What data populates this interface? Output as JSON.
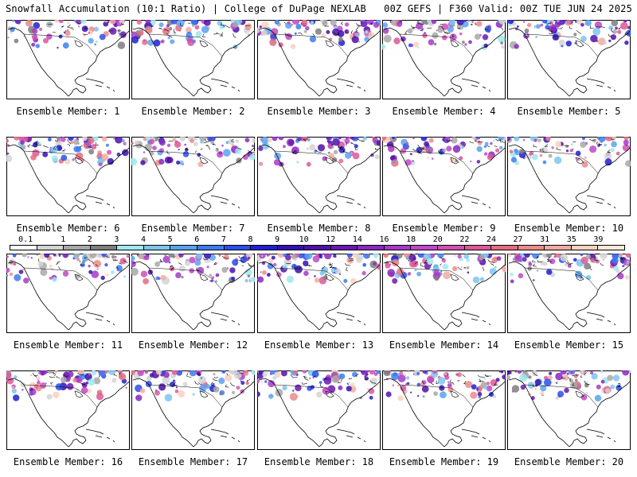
{
  "header": {
    "left": "Snowfall Accumulation (10:1 Ratio) | College of DuPage NEXLAB",
    "right": "00Z GEFS | F360 Valid: 00Z TUE JUN 24 2025"
  },
  "colorbar": {
    "labels": [
      "0.1",
      "1",
      "2",
      "3",
      "4",
      "5",
      "6",
      "7",
      "8",
      "9",
      "10",
      "12",
      "14",
      "16",
      "18",
      "20",
      "22",
      "24",
      "27",
      "31",
      "35",
      "39"
    ],
    "colors": [
      "#ffffff",
      "#d4d4d4",
      "#a8a8a8",
      "#7e7e7e",
      "#9ee8f0",
      "#7cc6ee",
      "#5aa2ee",
      "#3c7cee",
      "#2a50e8",
      "#2020d0",
      "#3410b0",
      "#5010a8",
      "#6a18b0",
      "#8a28c0",
      "#a63ac8",
      "#c048c8",
      "#d050b0",
      "#dc5898",
      "#e46a80",
      "#ec8a8a",
      "#f2aaa0",
      "#f8d0c0",
      "#fbe8d8"
    ]
  },
  "panels": [
    {
      "label": "Ensemble Member: 1"
    },
    {
      "label": "Ensemble Member: 2"
    },
    {
      "label": "Ensemble Member: 3"
    },
    {
      "label": "Ensemble Member: 4"
    },
    {
      "label": "Ensemble Member: 5"
    },
    {
      "label": "Ensemble Member: 6"
    },
    {
      "label": "Ensemble Member: 7"
    },
    {
      "label": "Ensemble Member: 8"
    },
    {
      "label": "Ensemble Member: 9"
    },
    {
      "label": "Ensemble Member: 10"
    },
    {
      "label": "Ensemble Member: 11"
    },
    {
      "label": "Ensemble Member: 12"
    },
    {
      "label": "Ensemble Member: 13"
    },
    {
      "label": "Ensemble Member: 14"
    },
    {
      "label": "Ensemble Member: 15"
    },
    {
      "label": "Ensemble Member: 16"
    },
    {
      "label": "Ensemble Member: 17"
    },
    {
      "label": "Ensemble Member: 18"
    },
    {
      "label": "Ensemble Member: 19"
    },
    {
      "label": "Ensemble Member: 20"
    }
  ]
}
